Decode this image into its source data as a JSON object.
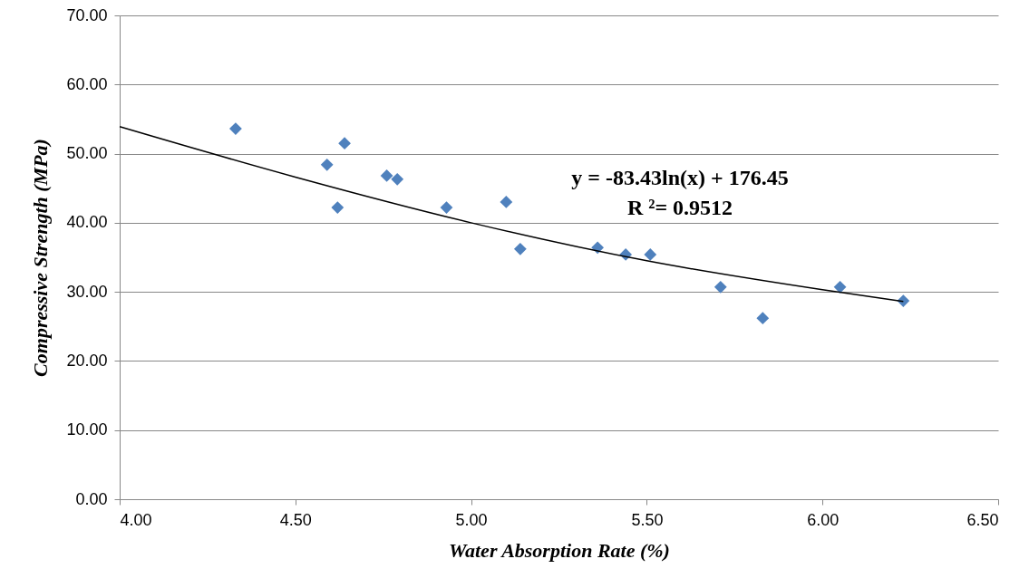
{
  "chart_data": {
    "type": "scatter",
    "xlabel": "Water Absorption Rate (%)",
    "ylabel": "Compressive Strength (MPa)",
    "xlim": [
      4,
      6.5
    ],
    "ylim": [
      0,
      70
    ],
    "xticks": [
      {
        "value": 4,
        "label": "4.00"
      },
      {
        "value": 4.5,
        "label": "4.50"
      },
      {
        "value": 5,
        "label": "5.00"
      },
      {
        "value": 5.5,
        "label": "5.50"
      },
      {
        "value": 6,
        "label": "6.00"
      },
      {
        "value": 6.5,
        "label": "6.50"
      }
    ],
    "yticks": [
      {
        "value": 0,
        "label": "0.00"
      },
      {
        "value": 10,
        "label": "10.00"
      },
      {
        "value": 20,
        "label": "20.00"
      },
      {
        "value": 30,
        "label": "30.00"
      },
      {
        "value": 40,
        "label": "40.00"
      },
      {
        "value": 50,
        "label": "50.00"
      },
      {
        "value": 60,
        "label": "60.00"
      },
      {
        "value": 70,
        "label": "70.00"
      }
    ],
    "grid": "y",
    "marker": "diamond",
    "annotations": [
      "y = -83.43ln(x) + 176.45",
      "R ²= 0.9512"
    ],
    "series": [
      {
        "color": "#4f81bd",
        "x": [
          4.33,
          4.59,
          4.64,
          4.62,
          4.76,
          4.79,
          4.93,
          5.1,
          5.14,
          5.36,
          5.44,
          5.51,
          5.71,
          5.83,
          6.05,
          6.23
        ],
        "values": [
          53.6,
          48.4,
          51.5,
          42.2,
          46.8,
          46.3,
          42.2,
          43.0,
          36.2,
          36.4,
          35.4,
          35.4,
          30.7,
          26.2,
          30.7,
          28.7
        ]
      },
      {
        "type": "line",
        "color": "#000000",
        "marker": "none",
        "line_style": "solid",
        "x": [
          4.0,
          4.5,
          5.0,
          5.5,
          6.0,
          6.23
        ],
        "values": [
          53.9,
          46.6,
          40.0,
          34.5,
          30.3,
          28.6
        ]
      }
    ]
  }
}
